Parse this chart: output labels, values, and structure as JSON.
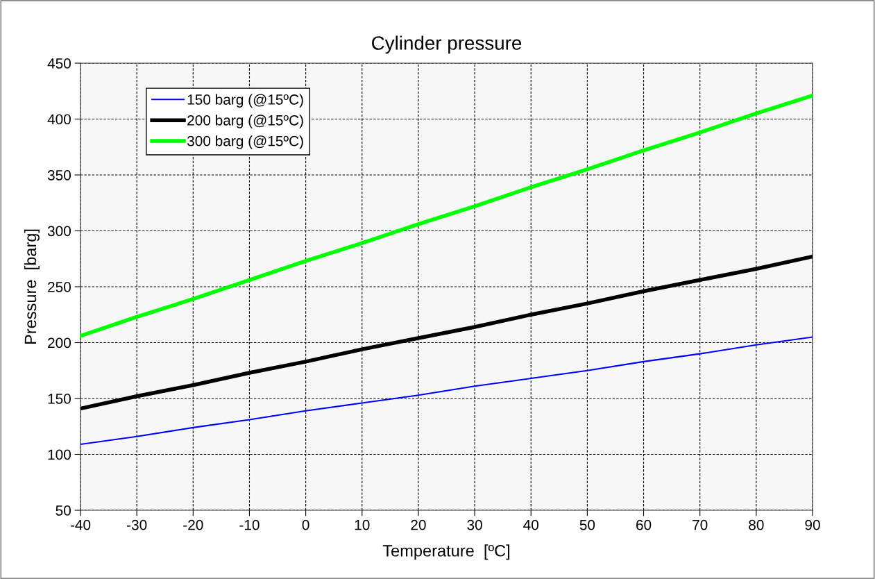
{
  "chart_data": {
    "type": "line",
    "title": "Cylinder pressure",
    "xlabel": "Temperature  [ºC]",
    "ylabel": "Pressure  [barg]",
    "x": [
      -40,
      -30,
      -20,
      -10,
      0,
      10,
      20,
      30,
      40,
      50,
      60,
      70,
      80,
      90
    ],
    "series": [
      {
        "name": "150 barg (@15ºC)",
        "color": "#0000ff",
        "values": [
          109,
          116,
          124,
          131,
          139,
          146,
          153,
          161,
          168,
          175,
          183,
          190,
          198,
          205
        ]
      },
      {
        "name": "200 barg (@15ºC)",
        "color": "#000000",
        "values": [
          141,
          152,
          162,
          173,
          183,
          194,
          204,
          214,
          225,
          235,
          246,
          256,
          266,
          277
        ]
      },
      {
        "name": "300 barg (@15ºC)",
        "color": "#00ff00",
        "values": [
          206,
          223,
          239,
          256,
          273,
          289,
          306,
          322,
          339,
          355,
          372,
          388,
          405,
          421
        ]
      }
    ],
    "xlim": [
      -40,
      90
    ],
    "xticks": [
      -40,
      -30,
      -20,
      -10,
      0,
      10,
      20,
      30,
      40,
      50,
      60,
      70,
      80,
      90
    ],
    "ylim": [
      50,
      450
    ],
    "yticks": [
      50,
      100,
      150,
      200,
      250,
      300,
      350,
      400,
      450
    ],
    "grid": true,
    "legend": "top left",
    "marker": "none",
    "line_style": "solid"
  }
}
